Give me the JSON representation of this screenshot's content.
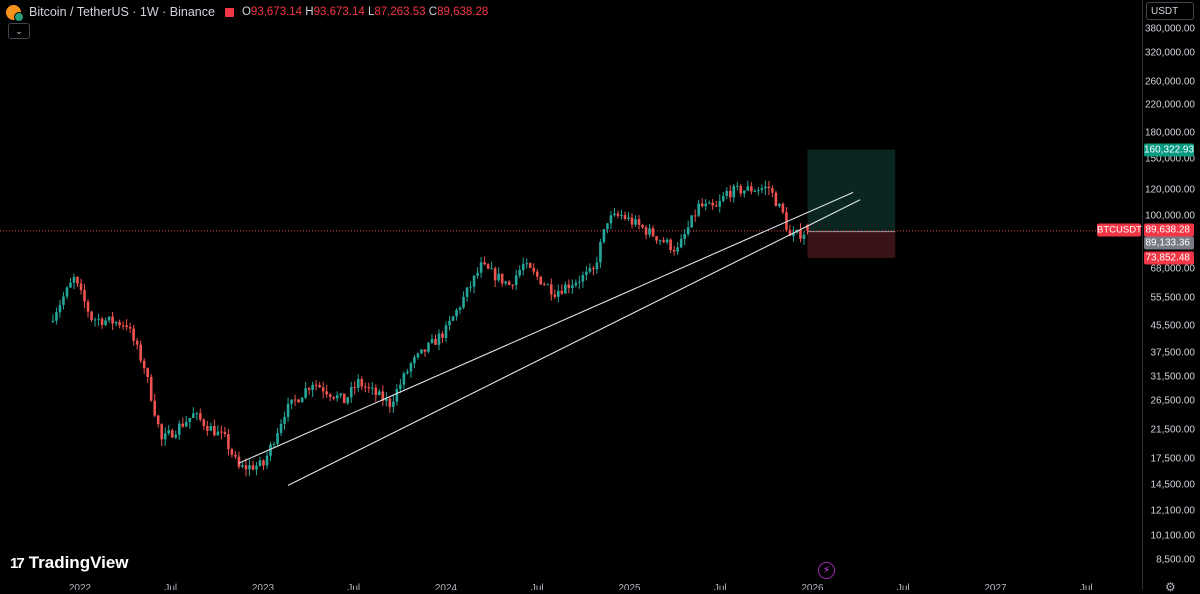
{
  "header": {
    "title": "Bitcoin / TetherUS · 1W · Binance",
    "ohlc": [
      {
        "key": "O",
        "value": "93,673.14"
      },
      {
        "key": "H",
        "value": "93,673.14"
      },
      {
        "key": "L",
        "value": "87,263.53"
      },
      {
        "key": "C",
        "value": "89,638.28"
      }
    ],
    "collapse_icon": "chevron-down-icon"
  },
  "currency_button": "USDT",
  "price_scale": {
    "ticks": [
      "380,000.00",
      "320,000.00",
      "260,000.00",
      "220,000.00",
      "180,000.00",
      "150,000.00",
      "120,000.00",
      "100,000.00",
      "68,000.00",
      "55,500.00",
      "45,500.00",
      "37,500.00",
      "31,500.00",
      "26,500.00",
      "21,500.00",
      "17,500.00",
      "14,500.00",
      "12,100.00",
      "10,100.00",
      "8,500.00"
    ],
    "labels": {
      "target": "160,322.93",
      "last": "89,638.28",
      "entry": "89,133.36",
      "stop": "73,852.48"
    },
    "symbol_label": "BTCUSDT"
  },
  "time_axis": [
    "2022",
    "Jul",
    "2023",
    "Jul",
    "2024",
    "Jul",
    "2025",
    "Jul",
    "2026",
    "Jul",
    "2027",
    "Jul"
  ],
  "branding": "TradingView",
  "colors": {
    "up": "#26a69a",
    "down": "#ef5350",
    "target_zone": "#0b2620",
    "stop_zone": "#3b1215",
    "price_line": "#f23645",
    "target_label": "#089981",
    "entry_label": "#787b86",
    "trendline": "#e0e3eb"
  },
  "chart_data": {
    "type": "candlestick",
    "symbol": "BTCUSDT",
    "interval": "1W",
    "scale": "log",
    "ylim": [
      7500,
      420000
    ],
    "anchor_closes": [
      [
        "2021-11-01",
        47000
      ],
      [
        "2021-12-20",
        63500
      ],
      [
        "2022-01-24",
        48000
      ],
      [
        "2022-04-04",
        46000
      ],
      [
        "2022-05-09",
        34000
      ],
      [
        "2022-06-13",
        20000
      ],
      [
        "2022-08-15",
        24000
      ],
      [
        "2022-10-17",
        20200
      ],
      [
        "2022-11-14",
        16400
      ],
      [
        "2023-01-02",
        16800
      ],
      [
        "2023-02-13",
        24500
      ],
      [
        "2023-04-10",
        30400
      ],
      [
        "2023-06-12",
        26500
      ],
      [
        "2023-07-10",
        30300
      ],
      [
        "2023-09-11",
        26000
      ],
      [
        "2023-10-23",
        34500
      ],
      [
        "2024-01-01",
        44000
      ],
      [
        "2024-03-11",
        69500
      ],
      [
        "2024-05-06",
        61000
      ],
      [
        "2024-06-03",
        70000
      ],
      [
        "2024-08-05",
        58000
      ],
      [
        "2024-10-21",
        67000
      ],
      [
        "2024-11-18",
        97000
      ],
      [
        "2024-12-16",
        100000
      ],
      [
        "2025-02-24",
        86000
      ],
      [
        "2025-04-07",
        78000
      ],
      [
        "2025-05-19",
        107000
      ],
      [
        "2025-06-23",
        105000
      ],
      [
        "2025-07-14",
        118000
      ],
      [
        "2025-08-11",
        120000
      ],
      [
        "2025-10-06",
        122000
      ],
      [
        "2025-11-03",
        101000
      ],
      [
        "2025-11-17",
        85500
      ],
      [
        "2025-12-22",
        89500
      ]
    ],
    "last_candle": {
      "open": 93673.14,
      "high": 93673.14,
      "low": 87263.53,
      "close": 89638.28
    },
    "position": {
      "entry": 89133.36,
      "target": 160322.93,
      "stop": 73852.48
    },
    "trendlines": [
      {
        "from": [
          "2022-11-14",
          17000
        ],
        "to": [
          "2026-03-23",
          118000
        ]
      },
      {
        "from": [
          "2023-02-20",
          14500
        ],
        "to": [
          "2026-04-06",
          112000
        ]
      }
    ]
  }
}
